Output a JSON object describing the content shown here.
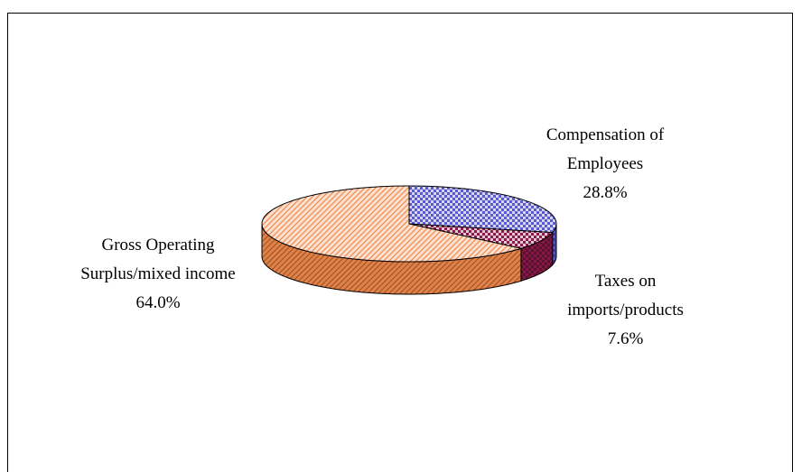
{
  "chart_data": {
    "type": "pie3d",
    "categories": [
      "Compensation of Employees",
      "Taxes on imports/products",
      "Gross Operating Surplus/mixed income"
    ],
    "values": [
      28.8,
      7.6,
      64.0
    ],
    "value_labels": [
      "28.8%",
      "7.6%",
      "64.0%"
    ],
    "colors": [
      "#5a5ad0",
      "#8b1a4a",
      "#f0884a"
    ]
  }
}
